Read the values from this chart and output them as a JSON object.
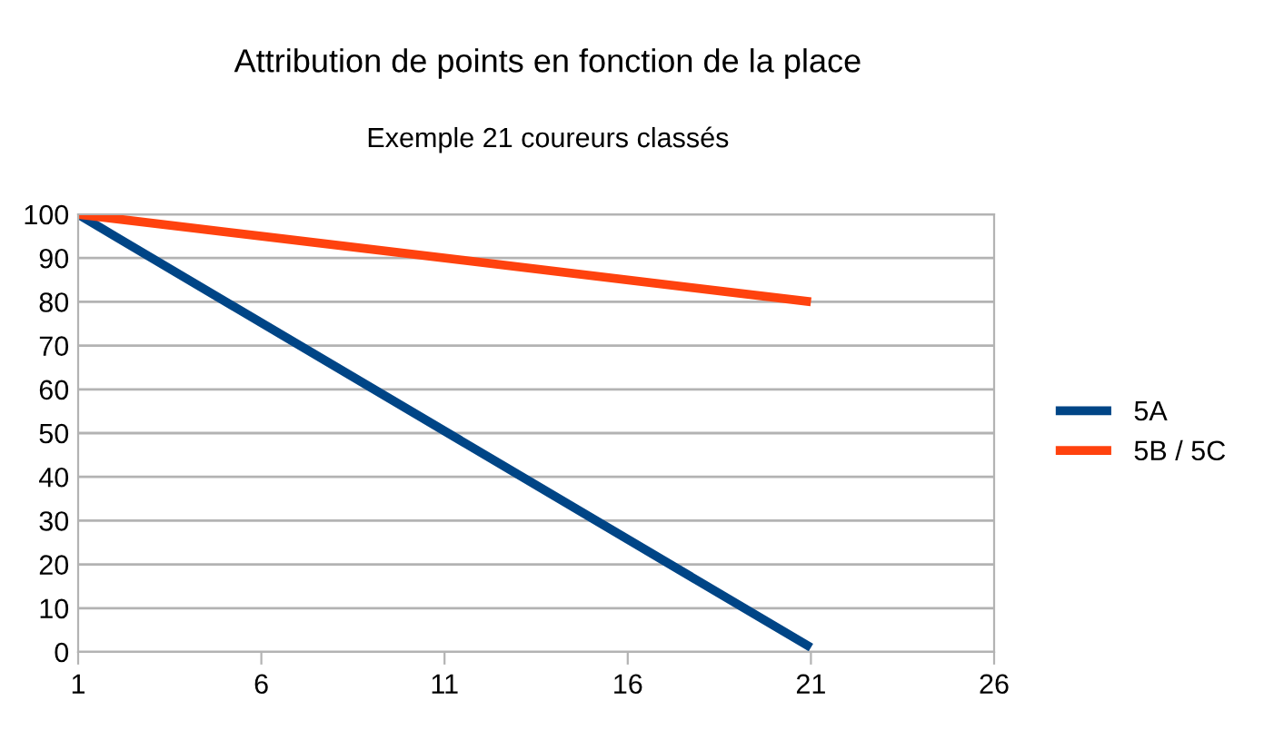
{
  "chart_data": {
    "type": "line",
    "title": "Attribution de points en fonction de la place",
    "subtitle": "Exemple 21 coureurs classés",
    "series": [
      {
        "name": "5A",
        "color": "#004586",
        "x": [
          1,
          2,
          21
        ],
        "values": [
          100,
          95,
          1
        ]
      },
      {
        "name": "5B / 5C",
        "color": "#ff420e",
        "x": [
          1,
          21
        ],
        "values": [
          100,
          80
        ]
      }
    ],
    "xlim": [
      1,
      26
    ],
    "xticks": [
      1,
      6,
      11,
      16,
      21,
      26
    ],
    "ylim": [
      0,
      100
    ],
    "yticks": [
      0,
      10,
      20,
      30,
      40,
      50,
      60,
      70,
      80,
      90,
      100
    ],
    "grid": "y",
    "legend": "right",
    "marker": "none",
    "line_style": "solid"
  }
}
